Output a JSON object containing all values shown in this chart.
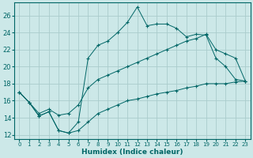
{
  "xlabel": "Humidex (Indice chaleur)",
  "bg_color": "#cce8e8",
  "grid_color": "#aacccc",
  "line_color": "#006666",
  "xlim": [
    -0.5,
    23.5
  ],
  "ylim": [
    11.5,
    27.5
  ],
  "xticks": [
    0,
    1,
    2,
    3,
    4,
    5,
    6,
    7,
    8,
    9,
    10,
    11,
    12,
    13,
    14,
    15,
    16,
    17,
    18,
    19,
    20,
    21,
    22,
    23
  ],
  "yticks": [
    12,
    14,
    16,
    18,
    20,
    22,
    24,
    26
  ],
  "series1_y": [
    17.0,
    15.8,
    14.2,
    14.7,
    12.5,
    12.2,
    13.5,
    21.0,
    22.5,
    23.0,
    24.0,
    25.2,
    27.0,
    24.8,
    25.0,
    25.0,
    24.5,
    23.5,
    23.8,
    23.7,
    21.0,
    20.0,
    18.5,
    18.3
  ],
  "series2_y": [
    17.0,
    15.8,
    14.5,
    15.0,
    14.3,
    14.5,
    15.5,
    17.5,
    18.5,
    19.0,
    19.5,
    20.0,
    20.5,
    21.0,
    21.5,
    22.0,
    22.5,
    23.0,
    23.3,
    23.8,
    22.0,
    21.5,
    21.0,
    18.3
  ],
  "series3_y": [
    17.0,
    15.8,
    14.2,
    14.7,
    12.5,
    12.2,
    12.5,
    13.5,
    14.5,
    15.0,
    15.5,
    16.0,
    16.2,
    16.5,
    16.8,
    17.0,
    17.2,
    17.5,
    17.7,
    18.0,
    18.0,
    18.0,
    18.2,
    18.3
  ]
}
